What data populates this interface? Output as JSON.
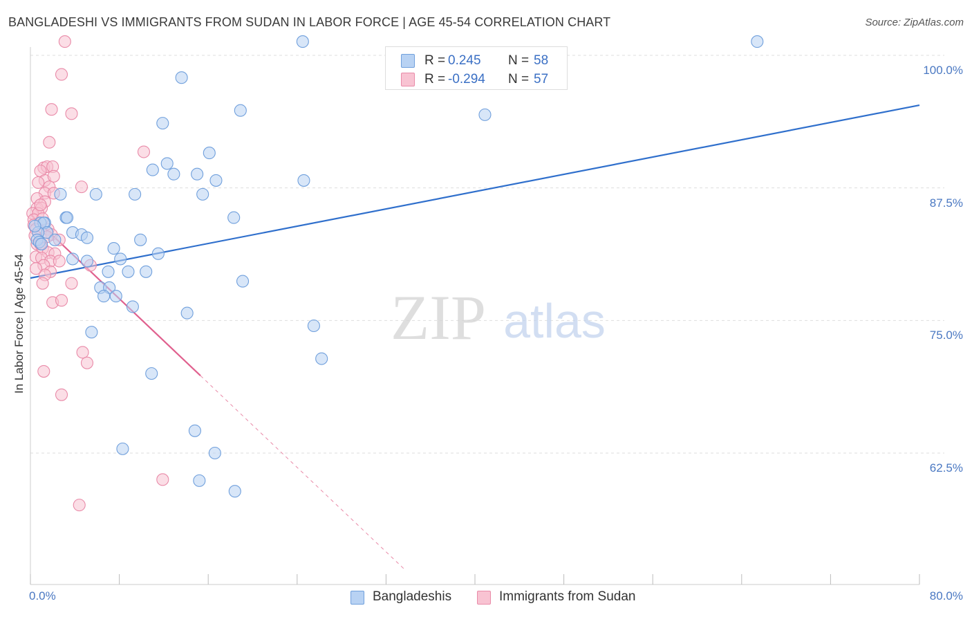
{
  "header": {
    "title": "BANGLADESHI VS IMMIGRANTS FROM SUDAN IN LABOR FORCE | AGE 45-54 CORRELATION CHART",
    "source": "Source: ZipAtlas.com"
  },
  "watermark": {
    "zip": "ZIP",
    "atlas": "atlas"
  },
  "legend": {
    "rows": [
      {
        "r_label": "R =",
        "r_value": "0.245",
        "n_label": "N =",
        "n_value": "58"
      },
      {
        "r_label": "R =",
        "r_value": "-0.294",
        "n_label": "N =",
        "n_value": "57"
      }
    ]
  },
  "bottom_legend": {
    "series1": "Bangladeshis",
    "series2": "Immigrants from Sudan"
  },
  "colors": {
    "blue_fill": "#b8d2f3",
    "blue_stroke": "#6f9fdc",
    "blue_line": "#2f6fcc",
    "pink_fill": "#f8c3d2",
    "pink_stroke": "#e98aa8",
    "pink_line": "#e0608e",
    "axis_text": "#4a78c2",
    "grid": "#dddddd"
  },
  "chart_data": {
    "type": "scatter",
    "title": "BANGLADESHI VS IMMIGRANTS FROM SUDAN IN LABOR FORCE | AGE 45-54 CORRELATION CHART",
    "xlabel": "",
    "ylabel": "In Labor Force | Age 45-54",
    "xlim": [
      0,
      80
    ],
    "ylim": [
      50,
      101.5
    ],
    "x_tick_labels": [
      "0.0%",
      "80.0%"
    ],
    "y_ticks": [
      62.5,
      75.0,
      87.5,
      100.0
    ],
    "y_tick_labels": [
      "62.5%",
      "75.0%",
      "87.5%",
      "100.0%"
    ],
    "grid": true,
    "legend_position": "top-center",
    "series": [
      {
        "name": "Bangladeshis",
        "r": 0.245,
        "n": 58,
        "trend": {
          "x": [
            0,
            80
          ],
          "y": [
            79.0,
            95.3
          ],
          "style": "solid"
        },
        "points": [
          [
            24.5,
            101.3
          ],
          [
            65.4,
            101.3
          ],
          [
            13.6,
            97.9
          ],
          [
            18.9,
            94.8
          ],
          [
            40.9,
            94.4
          ],
          [
            11.9,
            93.6
          ],
          [
            12.3,
            89.8
          ],
          [
            16.1,
            90.8
          ],
          [
            11.0,
            89.2
          ],
          [
            12.9,
            88.8
          ],
          [
            15.0,
            88.8
          ],
          [
            16.7,
            88.2
          ],
          [
            24.6,
            88.2
          ],
          [
            9.4,
            86.9
          ],
          [
            15.5,
            86.9
          ],
          [
            5.9,
            86.9
          ],
          [
            2.7,
            86.9
          ],
          [
            18.3,
            84.7
          ],
          [
            3.2,
            84.7
          ],
          [
            1.3,
            84.2
          ],
          [
            0.9,
            84.2
          ],
          [
            3.8,
            83.3
          ],
          [
            4.6,
            83.1
          ],
          [
            5.1,
            82.8
          ],
          [
            9.9,
            82.6
          ],
          [
            7.5,
            81.8
          ],
          [
            11.5,
            81.3
          ],
          [
            3.8,
            80.8
          ],
          [
            8.1,
            80.8
          ],
          [
            5.1,
            80.6
          ],
          [
            7.0,
            79.6
          ],
          [
            8.8,
            79.6
          ],
          [
            10.4,
            79.6
          ],
          [
            19.1,
            78.7
          ],
          [
            6.3,
            78.1
          ],
          [
            7.1,
            78.1
          ],
          [
            6.6,
            77.3
          ],
          [
            7.7,
            77.3
          ],
          [
            9.2,
            76.3
          ],
          [
            14.1,
            75.7
          ],
          [
            25.5,
            74.5
          ],
          [
            5.5,
            73.9
          ],
          [
            26.2,
            71.4
          ],
          [
            10.9,
            70.0
          ],
          [
            14.8,
            64.6
          ],
          [
            8.3,
            62.9
          ],
          [
            16.6,
            62.5
          ],
          [
            15.2,
            59.9
          ],
          [
            18.4,
            58.9
          ],
          [
            1.2,
            84.2
          ],
          [
            1.5,
            83.3
          ],
          [
            0.7,
            83.3
          ],
          [
            2.2,
            82.6
          ],
          [
            0.6,
            82.6
          ],
          [
            0.8,
            82.4
          ],
          [
            1.0,
            82.2
          ],
          [
            3.3,
            84.7
          ],
          [
            0.4,
            83.9
          ]
        ]
      },
      {
        "name": "Immigrants from Sudan",
        "r": -0.294,
        "n": 57,
        "trend": {
          "x": [
            0,
            15.3,
            33.7
          ],
          "y": [
            85.0,
            69.8,
            51.5
          ],
          "style": "solid-then-dashed"
        },
        "points": [
          [
            3.1,
            101.3
          ],
          [
            2.8,
            98.2
          ],
          [
            1.9,
            94.9
          ],
          [
            3.7,
            94.5
          ],
          [
            10.2,
            90.9
          ],
          [
            1.7,
            91.8
          ],
          [
            1.2,
            89.4
          ],
          [
            1.5,
            89.5
          ],
          [
            0.9,
            89.1
          ],
          [
            2.0,
            89.5
          ],
          [
            1.3,
            88.2
          ],
          [
            2.1,
            88.6
          ],
          [
            0.7,
            88.0
          ],
          [
            4.6,
            87.6
          ],
          [
            1.7,
            87.6
          ],
          [
            1.3,
            87.0
          ],
          [
            2.1,
            87.0
          ],
          [
            0.6,
            86.5
          ],
          [
            1.3,
            86.2
          ],
          [
            0.6,
            85.6
          ],
          [
            1.0,
            85.6
          ],
          [
            0.2,
            85.1
          ],
          [
            0.7,
            85.1
          ],
          [
            0.3,
            84.5
          ],
          [
            1.1,
            84.6
          ],
          [
            0.3,
            84.0
          ],
          [
            0.5,
            83.6
          ],
          [
            1.6,
            83.6
          ],
          [
            1.9,
            83.1
          ],
          [
            0.4,
            83.0
          ],
          [
            1.5,
            82.9
          ],
          [
            2.6,
            82.6
          ],
          [
            0.6,
            82.2
          ],
          [
            0.9,
            82.2
          ],
          [
            1.1,
            81.8
          ],
          [
            1.6,
            81.4
          ],
          [
            2.2,
            81.3
          ],
          [
            0.5,
            81.0
          ],
          [
            1.0,
            80.9
          ],
          [
            1.8,
            80.6
          ],
          [
            2.6,
            80.6
          ],
          [
            1.2,
            80.2
          ],
          [
            5.4,
            80.2
          ],
          [
            1.8,
            79.6
          ],
          [
            1.3,
            79.3
          ],
          [
            0.5,
            79.9
          ],
          [
            1.1,
            78.5
          ],
          [
            3.7,
            78.5
          ],
          [
            2.0,
            76.7
          ],
          [
            2.8,
            76.9
          ],
          [
            4.7,
            72.0
          ],
          [
            5.1,
            71.0
          ],
          [
            1.2,
            70.2
          ],
          [
            2.8,
            68.0
          ],
          [
            11.9,
            60.0
          ],
          [
            4.4,
            57.6
          ],
          [
            0.9,
            85.9
          ]
        ]
      }
    ]
  }
}
